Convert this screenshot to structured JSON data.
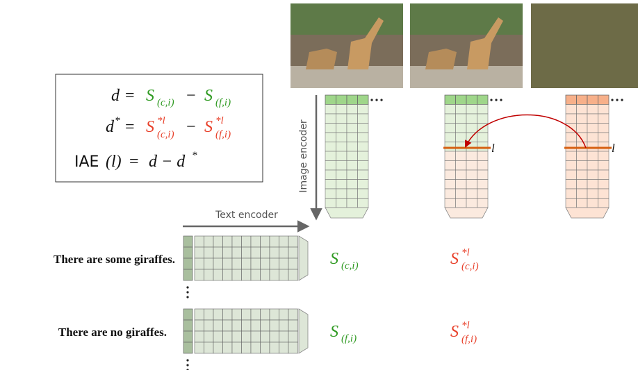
{
  "equations": [
    {
      "lhs": "d",
      "eq": "=",
      "t1": {
        "base": "S",
        "sub": "(c,i)"
      },
      "op": "−",
      "t2": {
        "base": "S",
        "sub": "(f,i)"
      }
    },
    {
      "lhs": "d",
      "lhs_sup": "*",
      "eq": "=",
      "t1": {
        "base": "S",
        "sup": "*l",
        "sub": "(c,i)"
      },
      "op": "−",
      "t2": {
        "base": "S",
        "sup": "*l",
        "sub": "(f,i)"
      }
    },
    {
      "func": "IAE",
      "arg": "(l)",
      "eq": "=",
      "rhs": "d − d",
      "sup": "*"
    }
  ],
  "image_encoder_label": "Image encoder",
  "text_encoder_label": "Text encoder",
  "layer_label": "l",
  "sentences": [
    "There are some giraffes.",
    "There are no giraffes."
  ]
}
